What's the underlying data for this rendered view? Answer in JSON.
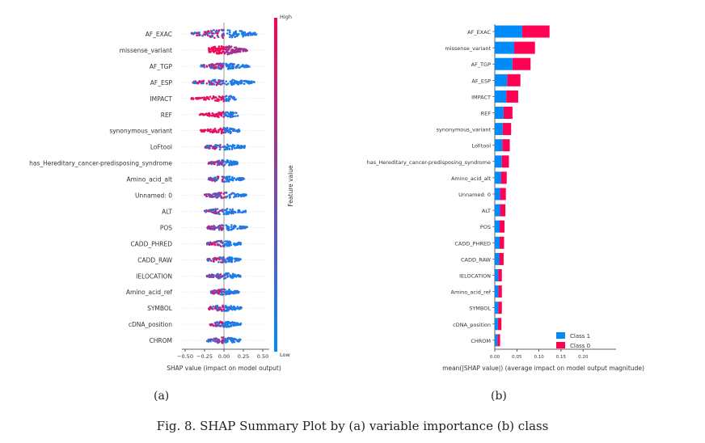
{
  "figure": {
    "caption": "Fig. 8.  SHAP Summary Plot by (a) variable importance (b) class",
    "label_a": "(a)",
    "label_b": "(b)"
  },
  "chart_data": [
    {
      "type": "scatter",
      "subtype": "beeswarm",
      "features": [
        "AF_EXAC",
        "missense_variant",
        "AF_TGP",
        "AF_ESP",
        "IMPACT",
        "REF",
        "synonymous_variant",
        "LoFtool",
        "has_Hereditary_cancer-predisposing_syndrome",
        "Amino_acid_alt",
        "Unnamed: 0",
        "ALT",
        "POS",
        "CADD_PHRED",
        "CADD_RAW",
        "IELOCATION",
        "Amino_acid_ref",
        "SYMBOL",
        "cDNA_position",
        "CHROM"
      ],
      "xlabel": "SHAP value (impact on model output)",
      "xticks": [
        -0.5,
        -0.25,
        0.0,
        0.25,
        0.5
      ],
      "xtick_labels": [
        "−0.50",
        "−0.25",
        "0.00",
        "0.25",
        "0.50"
      ],
      "xlim": [
        -0.62,
        0.62
      ],
      "shap_range": [
        [
          -0.42,
          0.42
        ],
        [
          -0.2,
          0.3
        ],
        [
          -0.3,
          0.33
        ],
        [
          -0.4,
          0.4
        ],
        [
          -0.42,
          0.16
        ],
        [
          -0.32,
          0.18
        ],
        [
          -0.3,
          0.2
        ],
        [
          -0.25,
          0.28
        ],
        [
          -0.2,
          0.18
        ],
        [
          -0.2,
          0.26
        ],
        [
          -0.25,
          0.3
        ],
        [
          -0.25,
          0.28
        ],
        [
          -0.22,
          0.3
        ],
        [
          -0.22,
          0.22
        ],
        [
          -0.22,
          0.22
        ],
        [
          -0.22,
          0.22
        ],
        [
          -0.18,
          0.2
        ],
        [
          -0.2,
          0.24
        ],
        [
          -0.18,
          0.22
        ],
        [
          -0.22,
          0.22
        ]
      ],
      "colorbar_high": "High",
      "colorbar_low": "Low",
      "colorbar_label": "Feature value",
      "color_high": "#ff0052",
      "color_low": "#008bfb"
    },
    {
      "type": "bar",
      "orientation": "horizontal",
      "stacked": true,
      "categories": [
        "AF_EXAC",
        "missense_variant",
        "AF_TGP",
        "AF_ESP",
        "IMPACT",
        "REF",
        "synonymous_variant",
        "LoFtool",
        "has_Hereditary_cancer-predisposing_syndrome",
        "Amino_acid_alt",
        "Unnamed: 0",
        "ALT",
        "POS",
        "CADD_PHRED",
        "CADD_RAW",
        "IELOCATION",
        "Amino_acid_ref",
        "SYMBOL",
        "cDNA_position",
        "CHROM"
      ],
      "series": [
        {
          "name": "Class 1",
          "color": "#008bfb",
          "values": [
            0.062,
            0.044,
            0.04,
            0.028,
            0.026,
            0.02,
            0.018,
            0.017,
            0.016,
            0.014,
            0.012,
            0.012,
            0.011,
            0.011,
            0.01,
            0.008,
            0.008,
            0.008,
            0.007,
            0.006
          ]
        },
        {
          "name": "Class 0",
          "color": "#ff0052",
          "values": [
            0.062,
            0.047,
            0.041,
            0.03,
            0.027,
            0.02,
            0.019,
            0.017,
            0.016,
            0.013,
            0.013,
            0.012,
            0.011,
            0.01,
            0.01,
            0.008,
            0.008,
            0.008,
            0.008,
            0.006
          ]
        }
      ],
      "xlabel": "mean(|SHAP value|) (average impact on model output magnitude)",
      "xticks": [
        0.0,
        0.05,
        0.1,
        0.15,
        0.2
      ],
      "xtick_labels": [
        "0.00",
        "0.05",
        "0.10",
        "0.15",
        "0.20"
      ],
      "xlim": [
        0,
        0.26
      ],
      "legend_position": "lower-right"
    }
  ]
}
